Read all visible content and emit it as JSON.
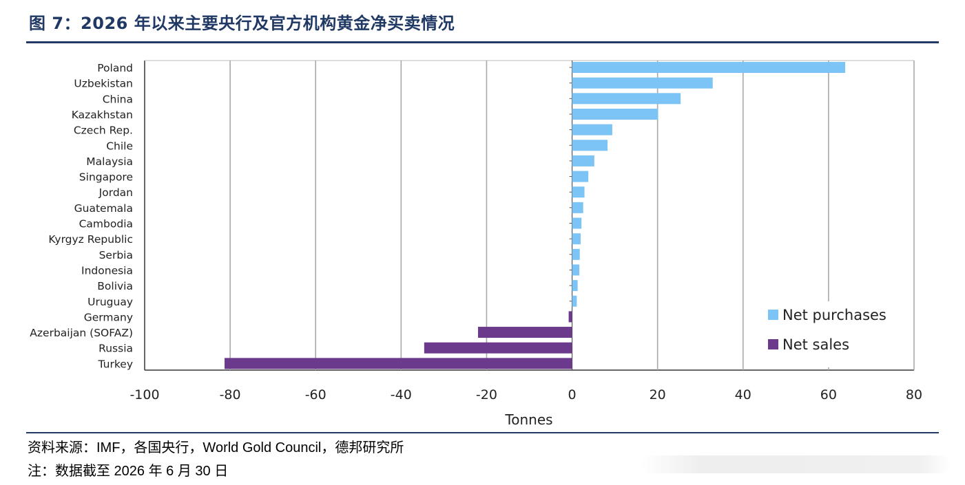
{
  "figure": {
    "title": "图 7：2026 年以来主要央行及官方机构黄金净买卖情况",
    "source": "资料来源：IMF，各国央行，World Gold Council，德邦研究所",
    "note": "注：数据截至 2026 年 6 月 30 日"
  },
  "chart_data": {
    "type": "bar",
    "orientation": "horizontal",
    "title": "",
    "xlabel": "Tonnes",
    "ylabel": "",
    "xlim": [
      -100,
      80
    ],
    "xticks": [
      -100,
      -80,
      -60,
      -40,
      -20,
      0,
      20,
      40,
      60,
      80
    ],
    "grid": "vertical",
    "legend_position": "bottom-right",
    "categories": [
      "Poland",
      "Uzbekistan",
      "China",
      "Kazakhstan",
      "Czech Rep.",
      "Chile",
      "Malaysia",
      "Singapore",
      "Jordan",
      "Guatemala",
      "Cambodia",
      "Kyrgyz Republic",
      "Serbia",
      "Indonesia",
      "Bolivia",
      "Uruguay",
      "Germany",
      "Azerbaijan (SOFAZ)",
      "Russia",
      "Turkey"
    ],
    "values": [
      63.9,
      32.9,
      25.4,
      20.1,
      9.4,
      8.3,
      5.2,
      3.8,
      2.9,
      2.6,
      2.2,
      2.0,
      1.8,
      1.7,
      1.3,
      1.1,
      -0.8,
      -22.0,
      -34.6,
      -81.3
    ],
    "series": [
      {
        "name": "Net purchases",
        "color": "#7cc4f5"
      },
      {
        "name": "Net sales",
        "color": "#6b3a8c"
      }
    ]
  }
}
